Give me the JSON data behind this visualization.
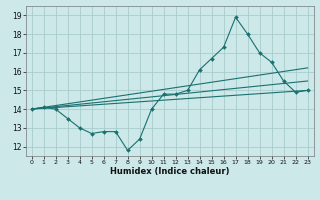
{
  "xlabel": "Humidex (Indice chaleur)",
  "bg_color": "#cce8e8",
  "grid_color": "#aacccc",
  "line_color": "#1a7070",
  "xlim": [
    -0.5,
    23.5
  ],
  "ylim": [
    11.5,
    19.5
  ],
  "xticks": [
    0,
    1,
    2,
    3,
    4,
    5,
    6,
    7,
    8,
    9,
    10,
    11,
    12,
    13,
    14,
    15,
    16,
    17,
    18,
    19,
    20,
    21,
    22,
    23
  ],
  "yticks": [
    12,
    13,
    14,
    15,
    16,
    17,
    18,
    19
  ],
  "line1_x": [
    0,
    1,
    2,
    3,
    4,
    5,
    6,
    7,
    8,
    9,
    10,
    11,
    12,
    13,
    14,
    15,
    16,
    17,
    18,
    19,
    20,
    21,
    22,
    23
  ],
  "line1_y": [
    14.0,
    14.1,
    14.0,
    13.5,
    13.0,
    12.7,
    12.8,
    12.8,
    11.8,
    12.4,
    14.0,
    14.8,
    14.8,
    15.0,
    16.1,
    16.7,
    17.3,
    18.9,
    18.0,
    17.0,
    16.5,
    15.5,
    14.9,
    15.0
  ],
  "line2_x": [
    0,
    23
  ],
  "line2_y": [
    14.0,
    15.0
  ],
  "line3_x": [
    0,
    23
  ],
  "line3_y": [
    14.0,
    15.5
  ],
  "line4_x": [
    0,
    23
  ],
  "line4_y": [
    14.0,
    16.2
  ]
}
